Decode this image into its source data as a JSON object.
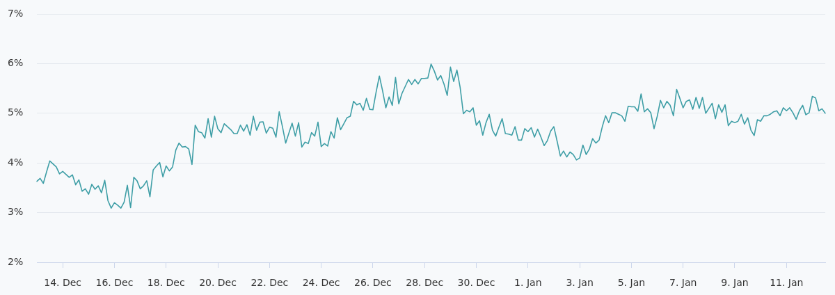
{
  "chart_data": {
    "type": "line",
    "color": "#3e9ea6",
    "marker": "none",
    "line_style": "solid",
    "grid": "y",
    "ylim": [
      2,
      7
    ],
    "yticks": [
      {
        "value": 2,
        "label": "2%"
      },
      {
        "value": 3,
        "label": "3%"
      },
      {
        "value": 4,
        "label": "4%"
      },
      {
        "value": 5,
        "label": "5%"
      },
      {
        "value": 6,
        "label": "6%"
      },
      {
        "value": 7,
        "label": "7%"
      }
    ],
    "categories": [
      null,
      null,
      null,
      null,
      null,
      null,
      null,
      null,
      "14. Dec",
      null,
      null,
      null,
      null,
      null,
      null,
      null,
      null,
      null,
      null,
      null,
      null,
      null,
      null,
      null,
      "16. Dec",
      null,
      null,
      null,
      null,
      null,
      null,
      null,
      null,
      null,
      null,
      null,
      null,
      null,
      null,
      null,
      "18. Dec",
      null,
      null,
      null,
      null,
      null,
      null,
      null,
      null,
      null,
      null,
      null,
      null,
      null,
      null,
      null,
      "20. Dec",
      null,
      null,
      null,
      null,
      null,
      null,
      null,
      null,
      null,
      null,
      null,
      null,
      null,
      null,
      null,
      "22. Dec",
      null,
      null,
      null,
      null,
      null,
      null,
      null,
      null,
      null,
      null,
      null,
      null,
      null,
      null,
      null,
      "24. Dec",
      null,
      null,
      null,
      null,
      null,
      null,
      null,
      null,
      null,
      null,
      null,
      null,
      null,
      null,
      null,
      "26. Dec",
      null,
      null,
      null,
      null,
      null,
      null,
      null,
      null,
      null,
      null,
      null,
      null,
      null,
      null,
      null,
      "28. Dec",
      null,
      null,
      null,
      null,
      null,
      null,
      null,
      null,
      null,
      null,
      null,
      null,
      null,
      null,
      null,
      "30. Dec",
      null,
      null,
      null,
      null,
      null,
      null,
      null,
      null,
      null,
      null,
      null,
      null,
      null,
      null,
      null,
      "1. Jan",
      null,
      null,
      null,
      null,
      null,
      null,
      null,
      null,
      null,
      null,
      null,
      null,
      null,
      null,
      null,
      "3. Jan",
      null,
      null,
      null,
      null,
      null,
      null,
      null,
      null,
      null,
      null,
      null,
      null,
      null,
      null,
      null,
      "5. Jan",
      null,
      null,
      null,
      null,
      null,
      null,
      null,
      null,
      null,
      null,
      null,
      null,
      null,
      null,
      null,
      "7. Jan",
      null,
      null,
      null,
      null,
      null,
      null,
      null,
      null,
      null,
      null,
      null,
      null,
      null,
      null,
      null,
      "9. Jan",
      null,
      null,
      null,
      null,
      null,
      null,
      null,
      null,
      null,
      null,
      null,
      null,
      null,
      null,
      null,
      "11. Jan",
      null,
      null,
      null,
      null,
      null,
      null,
      null,
      null,
      null,
      null,
      null,
      null
    ],
    "values": [
      3.63,
      3.69,
      3.59,
      3.82,
      4.04,
      3.98,
      3.92,
      3.78,
      3.83,
      3.77,
      3.71,
      3.76,
      3.56,
      3.66,
      3.43,
      3.48,
      3.37,
      3.57,
      3.47,
      3.54,
      3.4,
      3.65,
      3.24,
      3.09,
      3.2,
      3.15,
      3.09,
      3.21,
      3.55,
      3.1,
      3.71,
      3.64,
      3.48,
      3.54,
      3.64,
      3.32,
      3.86,
      3.94,
      4.01,
      3.72,
      3.94,
      3.84,
      3.92,
      4.26,
      4.4,
      4.32,
      4.33,
      4.28,
      3.97,
      4.76,
      4.63,
      4.61,
      4.5,
      4.89,
      4.52,
      4.94,
      4.69,
      4.61,
      4.79,
      4.73,
      4.67,
      4.59,
      4.59,
      4.76,
      4.64,
      4.77,
      4.56,
      4.94,
      4.66,
      4.82,
      4.83,
      4.6,
      4.72,
      4.7,
      4.52,
      5.03,
      4.73,
      4.4,
      4.6,
      4.8,
      4.54,
      4.81,
      4.32,
      4.42,
      4.39,
      4.61,
      4.54,
      4.82,
      4.33,
      4.39,
      4.34,
      4.63,
      4.5,
      4.91,
      4.67,
      4.79,
      4.91,
      4.94,
      5.24,
      5.17,
      5.2,
      5.06,
      5.3,
      5.08,
      5.07,
      5.43,
      5.75,
      5.45,
      5.11,
      5.33,
      5.16,
      5.72,
      5.19,
      5.4,
      5.54,
      5.68,
      5.58,
      5.68,
      5.59,
      5.7,
      5.7,
      5.71,
      5.99,
      5.85,
      5.67,
      5.76,
      5.59,
      5.36,
      5.93,
      5.64,
      5.87,
      5.52,
      4.99,
      5.06,
      5.03,
      5.11,
      4.76,
      4.85,
      4.56,
      4.81,
      4.98,
      4.66,
      4.54,
      4.72,
      4.89,
      4.59,
      4.58,
      4.56,
      4.73,
      4.46,
      4.46,
      4.69,
      4.63,
      4.71,
      4.52,
      4.68,
      4.52,
      4.35,
      4.45,
      4.64,
      4.73,
      4.44,
      4.14,
      4.24,
      4.12,
      4.22,
      4.17,
      4.06,
      4.1,
      4.36,
      4.17,
      4.28,
      4.49,
      4.4,
      4.46,
      4.73,
      4.95,
      4.81,
      5.01,
      5.01,
      4.98,
      4.95,
      4.84,
      5.14,
      5.13,
      5.13,
      5.04,
      5.39,
      5.03,
      5.09,
      5.01,
      4.69,
      4.94,
      5.26,
      5.11,
      5.24,
      5.16,
      4.95,
      5.48,
      5.3,
      5.11,
      5.24,
      5.27,
      5.08,
      5.32,
      5.1,
      5.32,
      5.0,
      5.1,
      5.2,
      4.89,
      5.17,
      5.02,
      5.17,
      4.75,
      4.84,
      4.81,
      4.84,
      4.98,
      4.78,
      4.91,
      4.66,
      4.55,
      4.87,
      4.84,
      4.95,
      4.95,
      4.98,
      5.03,
      5.05,
      4.95,
      5.11,
      5.05,
      5.11,
      5.01,
      4.88,
      5.05,
      5.16,
      4.97,
      5.01,
      5.34,
      5.31,
      5.05,
      5.09,
      5.0
    ]
  }
}
